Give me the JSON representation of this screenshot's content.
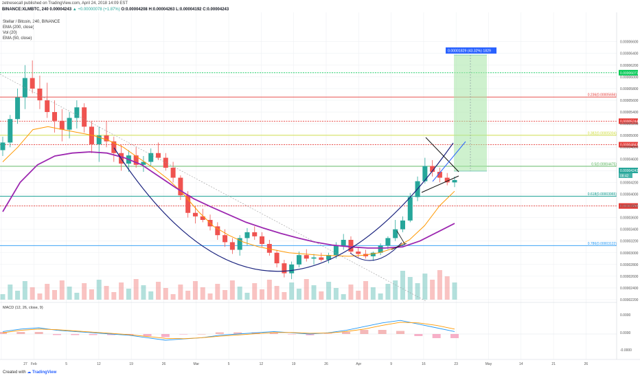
{
  "header": {
    "line1": "zetnesecall published on TradingView.com, April 24, 2018 14:09 EST",
    "symbol": "BINANCE:XLMBTC, 240",
    "last": "0.00004243",
    "change": "▲ +0.00000078 (+1.87%)",
    "open": "O:0.00004208",
    "high": "H:0.00004263",
    "low": "L:0.00004192",
    "close": "C:0.00004243"
  },
  "legend": {
    "title": "Stellar / Bitcoin, 240, BINANCE",
    "items": [
      "EMA (200, close)",
      "Vol (20)",
      "EMA (50, close)"
    ]
  },
  "macd_label": "MACD (12, 26, close, 9)",
  "footer": {
    "created": "Created with",
    "brand": "TradingView"
  },
  "position_box": {
    "label": "0.00001829 (43.32%) 1829"
  },
  "price_tag": {
    "value": "0.00004243",
    "time": "08:42"
  },
  "colors": {
    "up": "#26a69a",
    "down": "#ef5350",
    "ema200": "#9c27b0",
    "ema50": "#ff9800",
    "fib_red": "#e53935",
    "fib_green": "#4caf50",
    "target": "#00c853",
    "curve": "#1a237e"
  },
  "chart_data": {
    "type": "candlestick",
    "symbol": "BINANCE:XLMBTC",
    "interval": "240",
    "y_range": [
      2.2e-05,
      7.1e-05
    ],
    "x_ticks": [
      "27",
      "Feb",
      "5",
      "12",
      "19",
      "26",
      "Mar",
      "5",
      "12",
      "19",
      "26",
      "Apr",
      "9",
      "16",
      "23",
      "May",
      "14",
      "21",
      "26"
    ],
    "y_ticks": [
      "0.00006600",
      "0.00006400",
      "0.00006200",
      "0.00006000",
      "0.00005800",
      "0.00005600",
      "0.00005400",
      "0.00005200",
      "0.00005000",
      "0.00004800",
      "0.00004600",
      "0.00004400",
      "0.00004200",
      "0.00004000",
      "0.00003800",
      "0.00003600",
      "0.00003400",
      "0.00003200",
      "0.00003000",
      "0.00002800",
      "0.00002600",
      "0.00002400",
      "0.00002200"
    ],
    "levels": [
      {
        "name": "target",
        "value": 6.071e-05,
        "label": "0.00006071",
        "color": "#00c853",
        "style": "dotted"
      },
      {
        "name": "fib_0236",
        "value": 5.656e-05,
        "label": "0.236(0.00005656)",
        "color": "#e53935"
      },
      {
        "name": "res_red_1",
        "value": 5.244e-05,
        "label": "0.00005244",
        "color": "#e53935",
        "style": "dotted"
      },
      {
        "name": "fib_0382",
        "value": 5.004e-05,
        "label": "0.382(0.00005004)",
        "color": "#cddc39"
      },
      {
        "name": "res_red_2",
        "value": 4.843e-05,
        "label": "0.00004843",
        "color": "#e53935",
        "style": "dotted"
      },
      {
        "name": "fib_05",
        "value": 4.475e-05,
        "label": "0.5(0.00004475)",
        "color": "#4caf50"
      },
      {
        "name": "fib_0618",
        "value": 3.965e-05,
        "label": "0.618(0.00003965)",
        "color": "#009688"
      },
      {
        "name": "sup_red",
        "value": 3.798e-05,
        "label": "0.00003798",
        "color": "#e53935",
        "style": "dotted"
      },
      {
        "name": "fib_0786",
        "value": 3.122e-05,
        "label": "0.786(0.00003122)",
        "color": "#2196f3"
      }
    ],
    "candles": [
      [
        4.75e-05,
        4.98e-05,
        4.65e-05,
        4.88e-05
      ],
      [
        4.88e-05,
        5.35e-05,
        4.8e-05,
        5.28e-05
      ],
      [
        5.28e-05,
        5.8e-05,
        5.2e-05,
        5.65e-05
      ],
      [
        5.65e-05,
        6.2e-05,
        5.45e-05,
        5.98e-05
      ],
      [
        5.98e-05,
        6.28e-05,
        5.72e-05,
        5.8e-05
      ],
      [
        5.8e-05,
        6.02e-05,
        5.45e-05,
        5.6e-05
      ],
      [
        5.6e-05,
        5.9e-05,
        5.3e-05,
        5.4e-05
      ],
      [
        5.4e-05,
        5.6e-05,
        5.05e-05,
        5.25e-05
      ],
      [
        5.25e-05,
        5.45e-05,
        4.9e-05,
        5.1e-05
      ],
      [
        5.1e-05,
        5.4e-05,
        4.95e-05,
        5.3e-05
      ],
      [
        5.3e-05,
        5.6e-05,
        5.12e-05,
        5.48e-05
      ],
      [
        5.48e-05,
        5.55e-05,
        5.05e-05,
        5.15e-05
      ],
      [
        5.15e-05,
        5.25e-05,
        4.7e-05,
        4.85e-05
      ],
      [
        4.85e-05,
        5.15e-05,
        4.55e-05,
        5e-05
      ],
      [
        5e-05,
        5.25e-05,
        4.8e-05,
        4.9e-05
      ],
      [
        4.9e-05,
        4.98e-05,
        4.55e-05,
        4.7e-05
      ],
      [
        4.7e-05,
        4.85e-05,
        4.4e-05,
        4.52e-05
      ],
      [
        4.52e-05,
        4.75e-05,
        4.38e-05,
        4.66e-05
      ],
      [
        4.66e-05,
        4.8e-05,
        4.45e-05,
        4.5e-05
      ],
      [
        4.5e-05,
        4.65e-05,
        4.38e-05,
        4.55e-05
      ],
      [
        4.55e-05,
        4.78e-05,
        4.48e-05,
        4.7e-05
      ],
      [
        4.7e-05,
        4.88e-05,
        4.58e-05,
        4.62e-05
      ],
      [
        4.62e-05,
        4.7e-05,
        4.4e-05,
        4.45e-05
      ],
      [
        4.45e-05,
        4.55e-05,
        4.2e-05,
        4.28e-05
      ],
      [
        4.28e-05,
        4.32e-05,
        3.9e-05,
        3.98e-05
      ],
      [
        3.98e-05,
        4.05e-05,
        3.6e-05,
        3.68e-05
      ],
      [
        3.68e-05,
        3.8e-05,
        3.5e-05,
        3.62e-05
      ],
      [
        3.62e-05,
        3.75e-05,
        3.52e-05,
        3.56e-05
      ],
      [
        3.56e-05,
        3.65e-05,
        3.38e-05,
        3.45e-05
      ],
      [
        3.45e-05,
        3.52e-05,
        3.22e-05,
        3.3e-05
      ],
      [
        3.3e-05,
        3.4e-05,
        3.1e-05,
        3.18e-05
      ],
      [
        3.18e-05,
        3.25e-05,
        2.98e-05,
        3.05e-05
      ],
      [
        3.05e-05,
        3.3e-05,
        2.95e-05,
        3.25e-05
      ],
      [
        3.25e-05,
        3.42e-05,
        3.12e-05,
        3.35e-05
      ],
      [
        3.35e-05,
        3.45e-05,
        3.22e-05,
        3.28e-05
      ],
      [
        3.28e-05,
        3.35e-05,
        3.1e-05,
        3.15e-05
      ],
      [
        3.15e-05,
        3.22e-05,
        2.95e-05,
        3e-05
      ],
      [
        3e-05,
        3.05e-05,
        2.75e-05,
        2.82e-05
      ],
      [
        2.82e-05,
        2.88e-05,
        2.58e-05,
        2.65e-05
      ],
      [
        2.65e-05,
        2.85e-05,
        2.55e-05,
        2.8e-05
      ],
      [
        2.8e-05,
        3.02e-05,
        2.75e-05,
        2.96e-05
      ],
      [
        2.96e-05,
        3.06e-05,
        2.85e-05,
        2.9e-05
      ],
      [
        2.9e-05,
        2.98e-05,
        2.8e-05,
        2.92e-05
      ],
      [
        2.92e-05,
        3e-05,
        2.85e-05,
        2.88e-05
      ],
      [
        2.88e-05,
        3e-05,
        2.82e-05,
        2.96e-05
      ],
      [
        2.96e-05,
        3.18e-05,
        2.9e-05,
        3.12e-05
      ],
      [
        3.12e-05,
        3.32e-05,
        3.05e-05,
        3.22e-05
      ],
      [
        3.22e-05,
        3.28e-05,
        2.98e-05,
        3.02e-05
      ],
      [
        3.02e-05,
        3.1e-05,
        2.92e-05,
        2.98e-05
      ],
      [
        2.98e-05,
        3.05e-05,
        2.9e-05,
        2.94e-05
      ],
      [
        2.94e-05,
        3.02e-05,
        2.86e-05,
        3e-05
      ],
      [
        3e-05,
        3.16e-05,
        2.96e-05,
        3.12e-05
      ],
      [
        3.12e-05,
        3.28e-05,
        3.06e-05,
        3.25e-05
      ],
      [
        3.25e-05,
        3.56e-05,
        3.2e-05,
        3.4e-05
      ],
      [
        3.4e-05,
        3.62e-05,
        3.35e-05,
        3.55e-05
      ],
      [
        3.55e-05,
        4.02e-05,
        3.52e-05,
        3.95e-05
      ],
      [
        3.95e-05,
        4.3e-05,
        3.88e-05,
        4.22e-05
      ],
      [
        4.22e-05,
        4.62e-05,
        4.18e-05,
        4.48e-05
      ],
      [
        4.48e-05,
        4.58e-05,
        4.3e-05,
        4.38e-05
      ],
      [
        4.38e-05,
        4.45e-05,
        4.2e-05,
        4.28e-05
      ],
      [
        4.28e-05,
        4.36e-05,
        4.15e-05,
        4.2e-05
      ],
      [
        4.2e-05,
        4.3e-05,
        4.12e-05,
        4.24e-05
      ]
    ],
    "ema50": [
      4.55e-05,
      4.8e-05,
      5.1e-05,
      5.15e-05,
      5.1e-05,
      5.05e-05,
      5e-05,
      4.92e-05,
      4.8e-05,
      4.62e-05,
      4.45e-05,
      4.25e-05,
      4e-05,
      3.7e-05,
      3.45e-05,
      3.3e-05,
      3.18e-05,
      3.1e-05,
      3.05e-05,
      3e-05,
      2.98e-05,
      2.96e-05,
      2.95e-05,
      2.94e-05,
      2.96e-05,
      3e-05,
      3.08e-05,
      3.22e-05,
      3.46e-05,
      3.8e-05,
      4.05e-05
    ],
    "ema200": [
      3.7e-05,
      4.2e-05,
      4.5e-05,
      4.65e-05,
      4.7e-05,
      4.72e-05,
      4.7e-05,
      4.62e-05,
      4.5e-05,
      4.3e-05,
      4.1e-05,
      3.92e-05,
      3.78e-05,
      3.65e-05,
      3.52e-05,
      3.42e-05,
      3.33e-05,
      3.25e-05,
      3.18e-05,
      3.13e-05,
      3.1e-05,
      3.08e-05,
      3.08e-05,
      3.1e-05,
      3.2e-05,
      3.35e-05,
      3.5e-05
    ],
    "macd": {
      "line": [
        0.2,
        0.4,
        0.5,
        0.3,
        0.2,
        0.1,
        0.0,
        -0.1,
        -0.3,
        -0.5,
        -0.4,
        -0.3,
        -0.1,
        0.0,
        0.1,
        0.2,
        0.1,
        0.0,
        0.1,
        0.3,
        0.6,
        0.9,
        1.1,
        0.8,
        0.5,
        0.2
      ],
      "signal": [
        0.1,
        0.3,
        0.4,
        0.35,
        0.25,
        0.15,
        0.05,
        -0.05,
        -0.2,
        -0.35,
        -0.38,
        -0.3,
        -0.18,
        -0.08,
        0.02,
        0.12,
        0.12,
        0.06,
        0.08,
        0.2,
        0.4,
        0.7,
        0.95,
        0.9,
        0.7,
        0.4
      ]
    },
    "macd_ticks": [
      "0.0000",
      "0.0000",
      "-0.0000"
    ]
  }
}
